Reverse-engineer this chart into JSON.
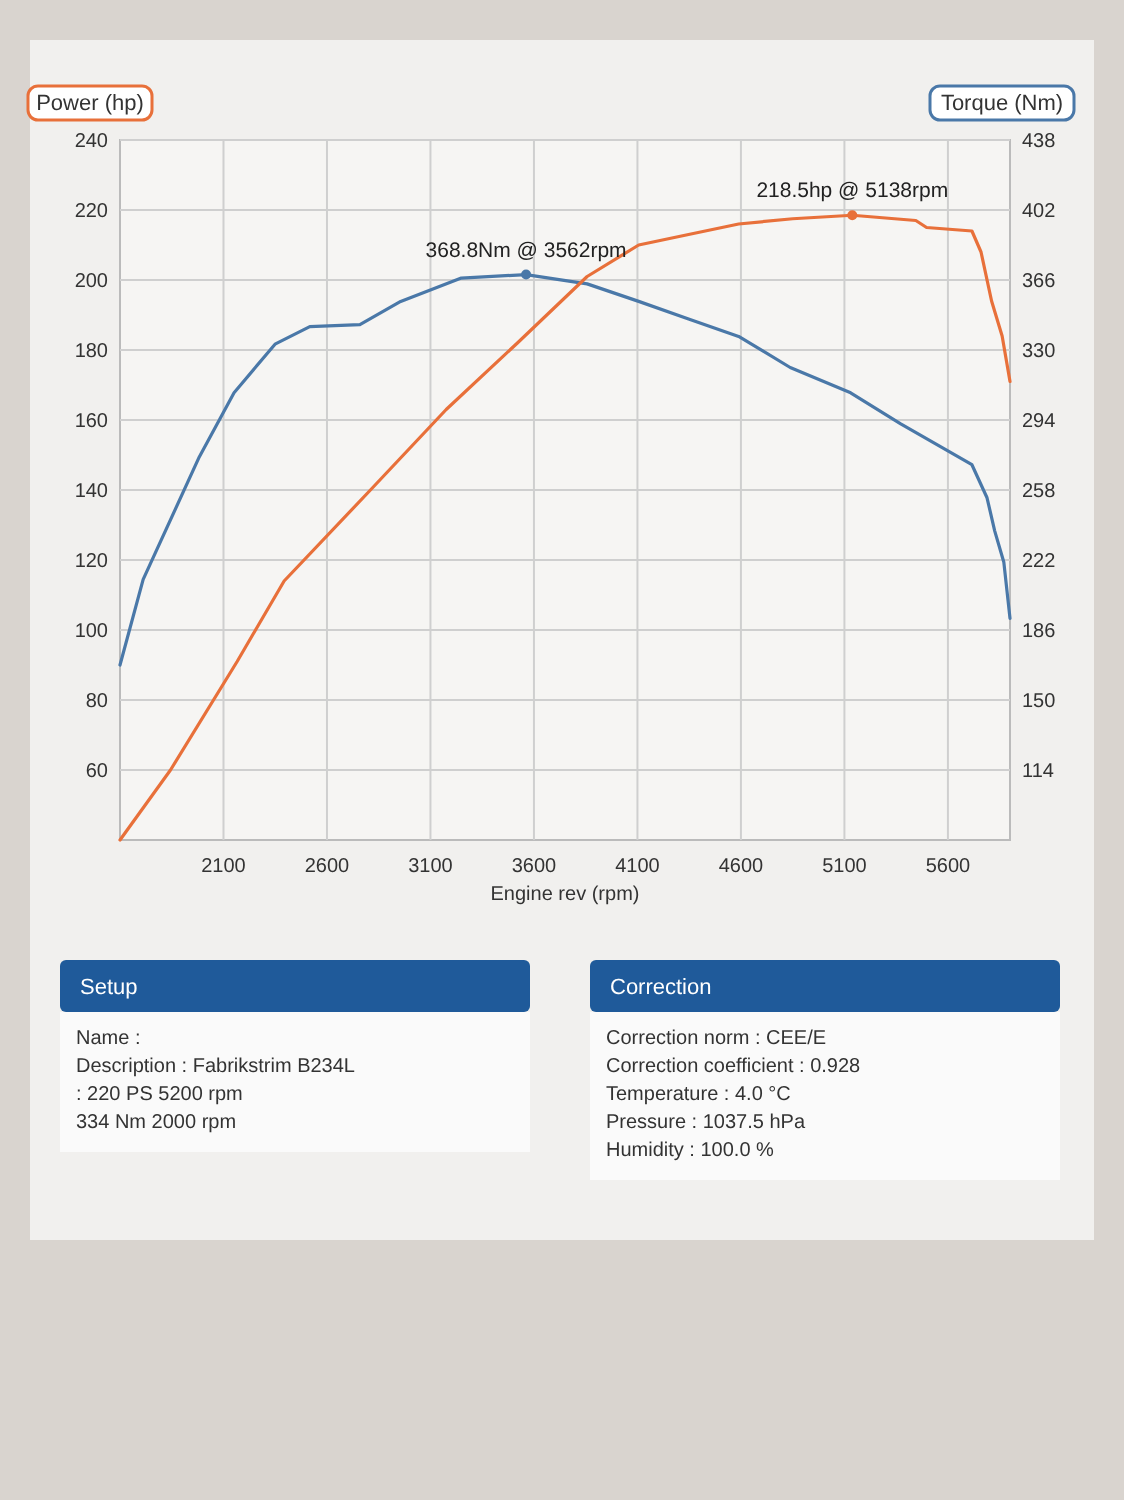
{
  "chart_data": [
    {
      "type": "line",
      "xlabel": "Engine rev (rpm)",
      "ylabel": "Power (hp)",
      "y2label": "Torque (Nm)",
      "xlim": [
        1600,
        5900
      ],
      "xticks": [
        2100,
        2600,
        3100,
        3600,
        4100,
        4600,
        5100,
        5600
      ],
      "ylim": [
        40,
        240
      ],
      "yticks": [
        60,
        80,
        100,
        120,
        140,
        160,
        180,
        200,
        220,
        240
      ],
      "y2lim": [
        78,
        438
      ],
      "y2ticks": [
        114,
        150,
        186,
        222,
        258,
        294,
        330,
        366,
        402,
        438
      ],
      "grid": true,
      "series": [
        {
          "color": "#4a78a8",
          "axis": "y2",
          "x": [
            1600,
            1712,
            1983,
            2151,
            2349,
            2517,
            2759,
            2956,
            3249,
            3562,
            3857,
            4106,
            4347,
            4589,
            4838,
            5130,
            5372,
            5716,
            5789,
            5826,
            5870,
            5900
          ],
          "values": [
            168,
            212,
            275,
            308,
            333,
            342,
            343,
            355,
            367,
            368.8,
            364,
            355,
            346,
            337,
            321,
            308,
            292,
            271,
            254,
            237,
            221,
            192
          ]
        },
        {
          "color": "#e8703a",
          "axis": "y",
          "x": [
            1600,
            1844,
            2166,
            2393,
            2810,
            3176,
            3520,
            3857,
            4106,
            4347,
            4589,
            4850,
            5138,
            5445,
            5497,
            5716,
            5760,
            5811,
            5862,
            5900
          ],
          "values": [
            40,
            60,
            91,
            114,
            140,
            163,
            182,
            201,
            210,
            213,
            216,
            217.5,
            218.5,
            217,
            215,
            214,
            208,
            194,
            184,
            171
          ]
        }
      ],
      "annotations": [
        "368.8Nm @ 3562rpm",
        {
          "text": "218.5hp @ 5138rpm",
          "x": 5138,
          "y": 218.5
        }
      ]
    },
    {
      "type": "other",
      "title": "Setup",
      "annotations": [
        "Name :",
        "Description : Fabrikstrim B234L",
        ": 220 PS 5200 rpm",
        "334 Nm 2000 rpm"
      ]
    },
    {
      "type": "other",
      "title": "Correction",
      "annotations": [
        "Correction norm : CEE/E",
        "Correction coefficient : 0.928",
        "Temperature : 4.0 °C",
        "Pressure : 1037.5 hPa",
        "Humidity : 100.0 %"
      ]
    }
  ]
}
